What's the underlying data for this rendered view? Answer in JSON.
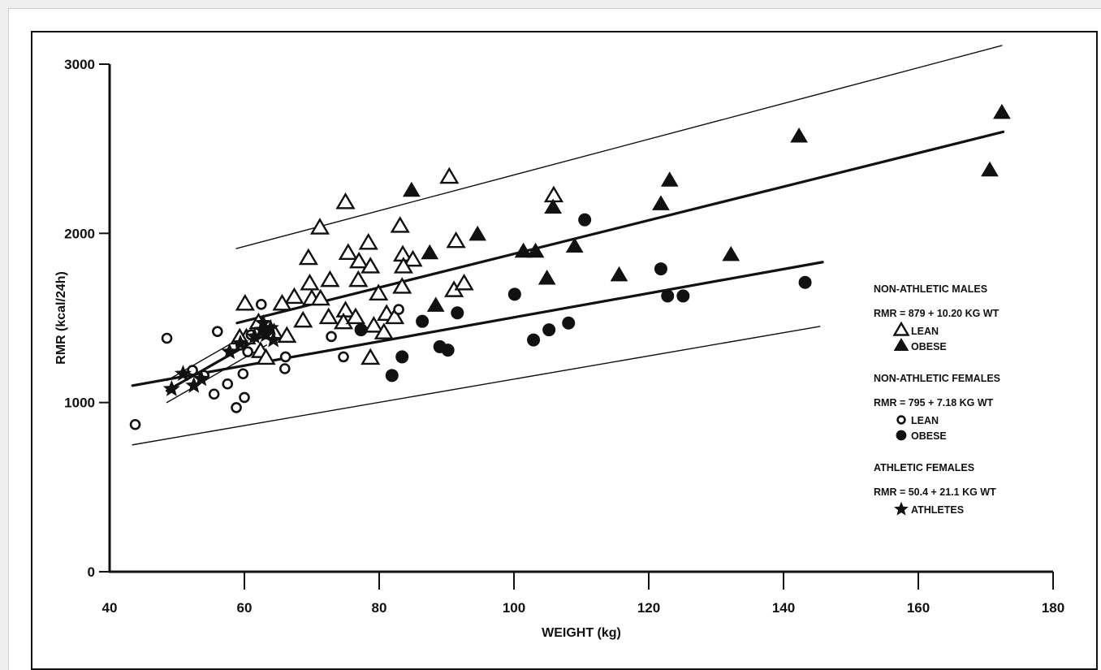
{
  "chart_data": {
    "type": "scatter",
    "title": "",
    "xlabel": "WEIGHT (kg)",
    "ylabel": "RMR (kcal/24h)",
    "xlim": [
      40,
      180
    ],
    "ylim": [
      0,
      3000
    ],
    "x_ticks": [
      40,
      60,
      80,
      100,
      120,
      140,
      160,
      180
    ],
    "y_ticks": [
      0,
      1000,
      2000,
      3000
    ],
    "grid": false,
    "legend_position": "right",
    "legend": {
      "groups": [
        {
          "heading": "NON-ATHLETIC MALES",
          "equation": "RMR = 879 + 10.20 KG WT",
          "entries": [
            {
              "marker": "open-triangle",
              "label": "LEAN"
            },
            {
              "marker": "filled-triangle",
              "label": "OBESE"
            }
          ]
        },
        {
          "heading": "NON-ATHLETIC FEMALES",
          "equation": "RMR = 795 + 7.18 KG WT",
          "entries": [
            {
              "marker": "open-circle",
              "label": "LEAN"
            },
            {
              "marker": "filled-circle",
              "label": "OBESE"
            }
          ]
        },
        {
          "heading": "ATHLETIC FEMALES",
          "equation": "RMR = 50.4 + 21.1 KG WT",
          "entries": [
            {
              "marker": "star",
              "label": "ATHLETES"
            }
          ]
        }
      ]
    },
    "series": [
      {
        "name": "Non-athletic males - Lean",
        "marker": "open-triangle",
        "points": [
          [
            90.4,
            2330
          ],
          [
            75,
            2180
          ],
          [
            71.2,
            2030
          ],
          [
            83.1,
            2040
          ],
          [
            69.5,
            1850
          ],
          [
            75.4,
            1880
          ],
          [
            77,
            1830
          ],
          [
            78.4,
            1940
          ],
          [
            78.7,
            1800
          ],
          [
            83.5,
            1870
          ],
          [
            85,
            1840
          ],
          [
            91.4,
            1950
          ],
          [
            105.9,
            2220
          ],
          [
            69.7,
            1700
          ],
          [
            72.7,
            1720
          ],
          [
            76.9,
            1720
          ],
          [
            83.6,
            1800
          ],
          [
            83.4,
            1680
          ],
          [
            67.4,
            1620
          ],
          [
            65.6,
            1580
          ],
          [
            60.1,
            1580
          ],
          [
            70,
            1610
          ],
          [
            71.3,
            1610
          ],
          [
            68.7,
            1480
          ],
          [
            72.5,
            1500
          ],
          [
            75,
            1540
          ],
          [
            79.9,
            1640
          ],
          [
            81.1,
            1520
          ],
          [
            82.3,
            1500
          ],
          [
            91.1,
            1660
          ],
          [
            92.6,
            1700
          ],
          [
            74.7,
            1470
          ],
          [
            76.5,
            1500
          ],
          [
            79.2,
            1450
          ],
          [
            80.7,
            1410
          ],
          [
            64.4,
            1410
          ],
          [
            66.3,
            1390
          ],
          [
            60.3,
            1380
          ],
          [
            59.3,
            1380
          ],
          [
            62.4,
            1300
          ],
          [
            62.1,
            1470
          ],
          [
            78.7,
            1260
          ],
          [
            63.2,
            1260
          ]
        ]
      },
      {
        "name": "Non-athletic males - Obese",
        "marker": "filled-triangle",
        "points": [
          [
            84.8,
            2250
          ],
          [
            94.6,
            1990
          ],
          [
            87.5,
            1880
          ],
          [
            101.4,
            1890
          ],
          [
            103.2,
            1890
          ],
          [
            105.8,
            2150
          ],
          [
            109,
            1920
          ],
          [
            104.9,
            1730
          ],
          [
            88.4,
            1570
          ],
          [
            115.6,
            1750
          ],
          [
            121.8,
            2170
          ],
          [
            123.1,
            2310
          ],
          [
            132.2,
            1870
          ],
          [
            142.3,
            2570
          ],
          [
            170.6,
            2370
          ],
          [
            172.4,
            2710
          ]
        ]
      },
      {
        "name": "Non-athletic females - Lean",
        "marker": "open-circle",
        "points": [
          [
            43.8,
            870
          ],
          [
            48.5,
            1380
          ],
          [
            56,
            1420
          ],
          [
            62.5,
            1580
          ],
          [
            59.5,
            1340
          ],
          [
            60.5,
            1300
          ],
          [
            61,
            1400
          ],
          [
            54,
            1160
          ],
          [
            55.5,
            1050
          ],
          [
            57.5,
            1110
          ],
          [
            59.8,
            1170
          ],
          [
            58.8,
            970
          ],
          [
            60,
            1030
          ],
          [
            66.1,
            1270
          ],
          [
            66,
            1200
          ],
          [
            72.9,
            1390
          ],
          [
            74.7,
            1270
          ],
          [
            82.9,
            1550
          ],
          [
            52.3,
            1190
          ]
        ]
      },
      {
        "name": "Non-athletic females - Obese",
        "marker": "filled-circle",
        "points": [
          [
            77.3,
            1430
          ],
          [
            81.9,
            1160
          ],
          [
            83.4,
            1270
          ],
          [
            86.4,
            1480
          ],
          [
            89,
            1330
          ],
          [
            90.2,
            1310
          ],
          [
            91.6,
            1530
          ],
          [
            100.1,
            1640
          ],
          [
            102.9,
            1370
          ],
          [
            105.2,
            1430
          ],
          [
            108.1,
            1470
          ],
          [
            110.5,
            2080
          ],
          [
            121.8,
            1790
          ],
          [
            122.8,
            1630
          ],
          [
            125.1,
            1630
          ],
          [
            143.2,
            1710
          ]
        ]
      },
      {
        "name": "Athletic females",
        "marker": "star",
        "points": [
          [
            49.2,
            1080
          ],
          [
            50.9,
            1170
          ],
          [
            52.5,
            1100
          ],
          [
            53.6,
            1140
          ],
          [
            57.8,
            1300
          ],
          [
            59.4,
            1350
          ],
          [
            61.5,
            1390
          ],
          [
            62.6,
            1430
          ],
          [
            63.2,
            1400
          ],
          [
            63.9,
            1440
          ],
          [
            64.3,
            1370
          ],
          [
            62.8,
            1470
          ]
        ]
      }
    ],
    "lines": [
      {
        "name": "Males regression",
        "style": "thick",
        "from": [
          58.9,
          1470
        ],
        "to": [
          172.6,
          2600
        ]
      },
      {
        "name": "Males upper bound",
        "style": "thin",
        "from": [
          58.8,
          1910
        ],
        "to": [
          172.4,
          3110
        ]
      },
      {
        "name": "Females regression",
        "style": "thick",
        "from": [
          43.4,
          1100
        ],
        "to": [
          145.8,
          1830
        ]
      },
      {
        "name": "Females lower bound",
        "style": "thin",
        "from": [
          43.4,
          750
        ],
        "to": [
          145.4,
          1450
        ]
      },
      {
        "name": "Athletes regression",
        "style": "thick",
        "from": [
          48.5,
          1070
        ],
        "to": [
          63.5,
          1410
        ]
      },
      {
        "name": "Athletes upper bound",
        "style": "thin",
        "from": [
          48.5,
          1130
        ],
        "to": [
          63.3,
          1470
        ]
      },
      {
        "name": "Athletes lower bound",
        "style": "thin",
        "from": [
          48.5,
          1000
        ],
        "to": [
          63.3,
          1340
        ]
      }
    ]
  }
}
